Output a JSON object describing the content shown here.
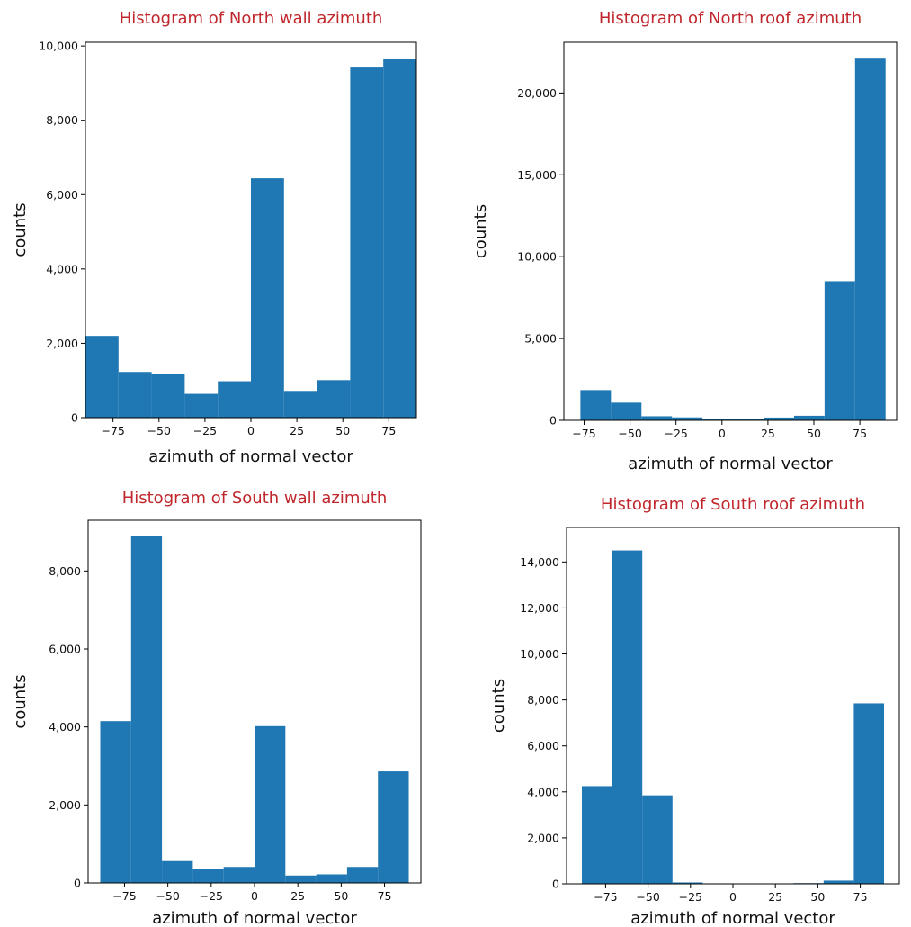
{
  "chart_data": [
    {
      "type": "bar",
      "title": "Histogram of North wall azimuth",
      "xlabel": "azimuth of normal vector",
      "ylabel": "counts",
      "xlim": [
        -90,
        90
      ],
      "ylim": [
        0,
        10100
      ],
      "xticks": [
        -75,
        -50,
        -25,
        0,
        25,
        50,
        75
      ],
      "xtick_labels": [
        "−75",
        "−50",
        "−25",
        "0",
        "25",
        "50",
        "75"
      ],
      "yticks": [
        0,
        2000,
        4000,
        6000,
        8000,
        10000
      ],
      "ytick_labels": [
        "0",
        "2,000",
        "4,000",
        "6,000",
        "8,000",
        "10,000"
      ],
      "bin_edges": [
        -90,
        -72,
        -54,
        -36,
        -18,
        0,
        18,
        36,
        54,
        72,
        90
      ],
      "values": [
        2200,
        1230,
        1170,
        640,
        980,
        6440,
        720,
        1010,
        9420,
        9640
      ],
      "color": "#1f77b4"
    },
    {
      "type": "bar",
      "title": "Histogram of North roof azimuth",
      "xlabel": "azimuth of normal vector",
      "ylabel": "counts",
      "xlim": [
        -86,
        95
      ],
      "ylim": [
        0,
        23100
      ],
      "xticks": [
        -75,
        -50,
        -25,
        0,
        25,
        50,
        75
      ],
      "xtick_labels": [
        "−75",
        "−50",
        "−25",
        "0",
        "25",
        "50",
        "75"
      ],
      "yticks": [
        0,
        5000,
        10000,
        15000,
        20000
      ],
      "ytick_labels": [
        "0",
        "5,000",
        "10,000",
        "15,000",
        "20,000"
      ],
      "bin_edges": [
        -77,
        -60.4,
        -43.8,
        -27.2,
        -10.6,
        6,
        22.6,
        39.2,
        55.8,
        72.4,
        89
      ],
      "values": [
        1850,
        1080,
        250,
        180,
        100,
        110,
        170,
        280,
        8500,
        22100
      ],
      "color": "#1f77b4"
    },
    {
      "type": "bar",
      "title": "Histogram of South wall azimuth",
      "xlabel": "azimuth of normal vector",
      "ylabel": "counts",
      "xlim": [
        -96,
        96
      ],
      "ylim": [
        0,
        9300
      ],
      "xticks": [
        -75,
        -50,
        -25,
        0,
        25,
        50,
        75
      ],
      "xtick_labels": [
        "−75",
        "−50",
        "−25",
        "0",
        "25",
        "50",
        "75"
      ],
      "yticks": [
        0,
        2000,
        4000,
        6000,
        8000
      ],
      "ytick_labels": [
        "0",
        "2,000",
        "4,000",
        "6,000",
        "8,000"
      ],
      "bin_edges": [
        -89,
        -71.2,
        -53.4,
        -35.6,
        -17.8,
        0,
        17.8,
        35.6,
        53.4,
        71.2,
        89
      ],
      "values": [
        4150,
        8900,
        560,
        360,
        410,
        4020,
        190,
        220,
        410,
        2860
      ],
      "color": "#1f77b4"
    },
    {
      "type": "bar",
      "title": "Histogram of South roof azimuth",
      "xlabel": "azimuth of normal vector",
      "ylabel": "counts",
      "xlim": [
        -98,
        98
      ],
      "ylim": [
        0,
        15500
      ],
      "xticks": [
        -75,
        -50,
        -25,
        0,
        25,
        50,
        75
      ],
      "xtick_labels": [
        "−75",
        "−50",
        "−25",
        "0",
        "25",
        "50",
        "75"
      ],
      "yticks": [
        0,
        2000,
        4000,
        6000,
        8000,
        10000,
        12000,
        14000
      ],
      "ytick_labels": [
        "0",
        "2,000",
        "4,000",
        "6,000",
        "8,000",
        "10,000",
        "12,000",
        "14,000"
      ],
      "bin_edges": [
        -89,
        -71.2,
        -53.4,
        -35.6,
        -17.8,
        0,
        17.8,
        35.6,
        53.4,
        71.2,
        89
      ],
      "values": [
        4250,
        14500,
        3850,
        60,
        20,
        10,
        10,
        30,
        140,
        7850
      ],
      "color": "#1f77b4"
    }
  ]
}
